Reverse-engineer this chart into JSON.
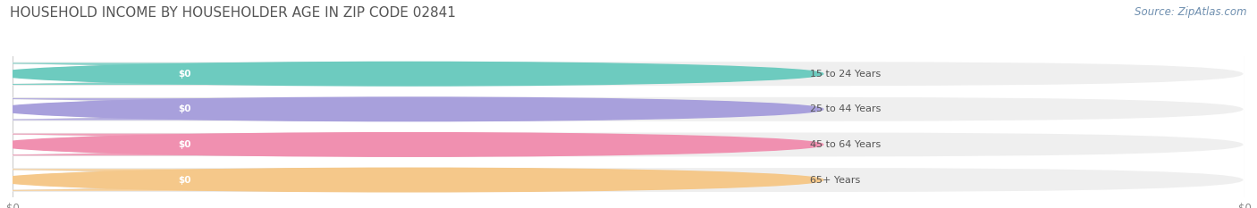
{
  "title": "HOUSEHOLD INCOME BY HOUSEHOLDER AGE IN ZIP CODE 02841",
  "source_text": "Source: ZipAtlas.com",
  "categories": [
    "15 to 24 Years",
    "25 to 44 Years",
    "45 to 64 Years",
    "65+ Years"
  ],
  "values": [
    0,
    0,
    0,
    0
  ],
  "bar_colors": [
    "#6dcbbf",
    "#a8a0dc",
    "#f090b0",
    "#f5c88a"
  ],
  "background_color": "#ffffff",
  "bar_bg_color": "#efefef",
  "title_fontsize": 11,
  "source_fontsize": 8.5,
  "figsize": [
    14.06,
    2.33
  ],
  "dpi": 100
}
